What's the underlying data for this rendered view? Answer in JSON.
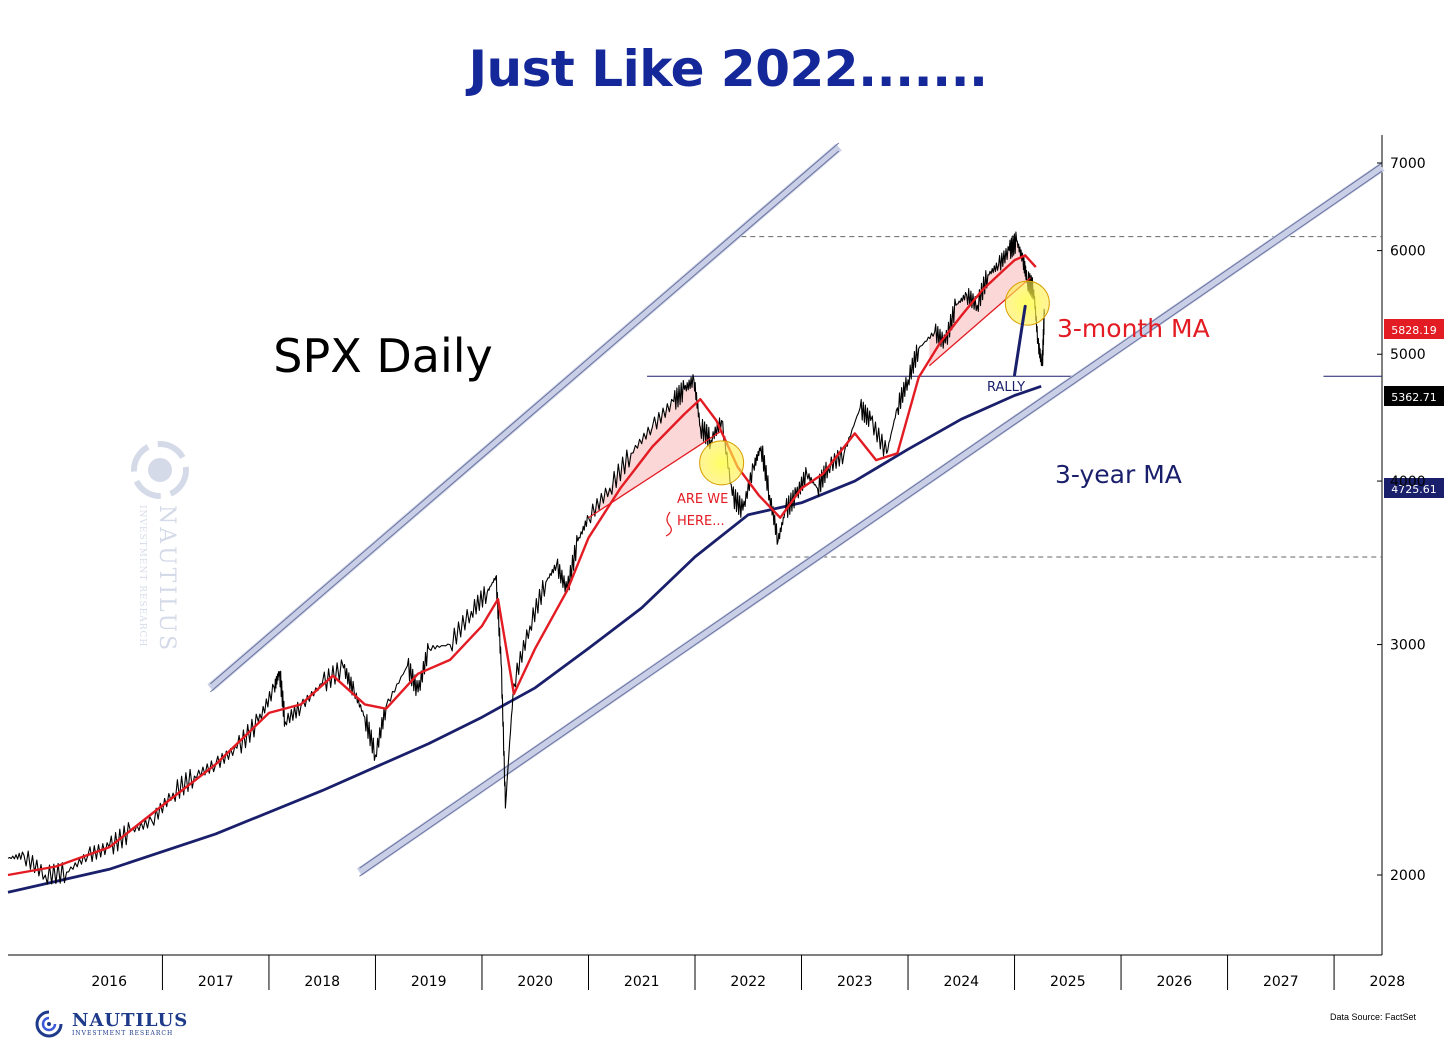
{
  "title": "Just Like 2022.......",
  "brand": {
    "name": "NAUTILUS",
    "tagline": "INVESTMENT RESEARCH"
  },
  "source": "Data Source: FactSet",
  "colors": {
    "price": "#000000",
    "ma3m": "#e31b23",
    "ma3y": "#1a1f6b",
    "channel": "#9aa3c9",
    "title": "#14289a",
    "highlight": "#ffff33"
  },
  "chart_data": {
    "type": "line",
    "title": "SPX Daily",
    "xlabel": "",
    "ylabel": "",
    "x_ticks": [
      "2016",
      "2017",
      "2018",
      "2019",
      "2020",
      "2021",
      "2022",
      "2023",
      "2024",
      "2025",
      "2026",
      "2027",
      "2028"
    ],
    "xlim": [
      2015.55,
      2028.45
    ],
    "y_ticks": [
      2000,
      3000,
      4000,
      5000,
      6000,
      7000
    ],
    "ylim": [
      1500,
      7200
    ],
    "y_scale": "log",
    "series": [
      {
        "name": "SPX",
        "x": [
          2015.55,
          2015.7,
          2015.9,
          2016.1,
          2016.3,
          2016.5,
          2016.7,
          2016.9,
          2017.1,
          2017.3,
          2017.5,
          2017.7,
          2017.9,
          2018.05,
          2018.1,
          2018.15,
          2018.3,
          2018.5,
          2018.7,
          2018.8,
          2018.9,
          2019.0,
          2019.1,
          2019.3,
          2019.4,
          2019.5,
          2019.7,
          2019.9,
          2020.05,
          2020.13,
          2020.18,
          2020.22,
          2020.3,
          2020.45,
          2020.6,
          2020.7,
          2020.8,
          2020.9,
          2021.0,
          2021.2,
          2021.4,
          2021.6,
          2021.8,
          2021.9,
          2021.99,
          2022.05,
          2022.15,
          2022.25,
          2022.35,
          2022.45,
          2022.55,
          2022.62,
          2022.7,
          2022.78,
          2022.85,
          2022.95,
          2023.05,
          2023.15,
          2023.25,
          2023.4,
          2023.55,
          2023.65,
          2023.8,
          2023.9,
          2024.0,
          2024.1,
          2024.25,
          2024.35,
          2024.45,
          2024.55,
          2024.65,
          2024.75,
          2024.85,
          2024.95,
          2025.02,
          2025.08,
          2025.12,
          2025.18,
          2025.22,
          2025.26,
          2025.28
        ],
        "y": [
          2060,
          2070,
          2000,
          2010,
          2070,
          2100,
          2160,
          2200,
          2310,
          2380,
          2430,
          2500,
          2620,
          2780,
          2860,
          2620,
          2690,
          2800,
          2880,
          2760,
          2640,
          2470,
          2690,
          2890,
          2760,
          2980,
          3000,
          3180,
          3290,
          3380,
          2900,
          2250,
          2800,
          3100,
          3350,
          3450,
          3300,
          3600,
          3750,
          3950,
          4200,
          4400,
          4600,
          4700,
          4780,
          4400,
          4300,
          4450,
          3900,
          3800,
          4100,
          4250,
          3900,
          3600,
          3800,
          3900,
          4050,
          3950,
          4100,
          4200,
          4550,
          4450,
          4200,
          4550,
          4780,
          5050,
          5200,
          5100,
          5450,
          5550,
          5450,
          5750,
          5850,
          6000,
          6100,
          5900,
          5700,
          5600,
          5100,
          4900,
          5362.71
        ]
      },
      {
        "name": "3-month MA",
        "x": [
          2015.55,
          2016.0,
          2016.5,
          2017.0,
          2017.5,
          2018.0,
          2018.3,
          2018.6,
          2018.9,
          2019.1,
          2019.4,
          2019.7,
          2020.0,
          2020.15,
          2020.3,
          2020.5,
          2020.8,
          2021.0,
          2021.3,
          2021.6,
          2021.9,
          2022.05,
          2022.2,
          2022.4,
          2022.6,
          2022.8,
          2023.0,
          2023.2,
          2023.5,
          2023.7,
          2023.9,
          2024.1,
          2024.3,
          2024.5,
          2024.7,
          2024.9,
          2025.0,
          2025.1,
          2025.2
        ],
        "y": [
          2000,
          2030,
          2100,
          2260,
          2430,
          2660,
          2700,
          2840,
          2700,
          2680,
          2850,
          2920,
          3100,
          3250,
          2750,
          2980,
          3300,
          3620,
          3950,
          4250,
          4500,
          4620,
          4450,
          4100,
          3900,
          3750,
          3950,
          4050,
          4350,
          4150,
          4200,
          4800,
          5100,
          5350,
          5600,
          5800,
          5900,
          5950,
          5828.19
        ]
      },
      {
        "name": "3-year MA",
        "x": [
          2015.55,
          2016.5,
          2017.5,
          2018.5,
          2019.5,
          2020.0,
          2020.5,
          2021.0,
          2021.5,
          2022.0,
          2022.5,
          2023.0,
          2023.5,
          2024.0,
          2024.5,
          2025.0,
          2025.25
        ],
        "y": [
          1940,
          2020,
          2150,
          2320,
          2520,
          2640,
          2780,
          2980,
          3200,
          3500,
          3770,
          3850,
          4000,
          4230,
          4460,
          4650,
          4725.61
        ]
      }
    ],
    "price_labels": {
      "ma3m": "5828.19",
      "spx": "5362.71",
      "ma3y": "4725.61"
    },
    "annotations": {
      "ma3m_label": "3-month MA",
      "ma3y_label": "3-year MA",
      "rally": "RALLY",
      "are_we": "ARE WE",
      "here": "HERE..."
    },
    "reference_levels": {
      "top": 6150,
      "bottom": 3500,
      "support": 4810
    },
    "channels": [
      {
        "x": [
          2017.45,
          2023.35
        ],
        "y": [
          2780,
          7200
        ]
      },
      {
        "x": [
          2018.85,
          2028.45
        ],
        "y": [
          2010,
          6950
        ]
      }
    ],
    "trendlines": [
      {
        "x": [
          2021.0,
          2022.25
        ],
        "y": [
          3750,
          4370
        ]
      },
      {
        "x": [
          2024.2,
          2025.15
        ],
        "y": [
          4900,
          5720
        ]
      }
    ],
    "rally_arrow": {
      "x": [
        2025.0,
        2025.1
      ],
      "y": [
        4820,
        5440
      ]
    },
    "highlights": [
      {
        "x": 2022.25,
        "y": 4130
      },
      {
        "x": 2025.12,
        "y": 5470
      }
    ],
    "grid": false,
    "legend": "none"
  }
}
